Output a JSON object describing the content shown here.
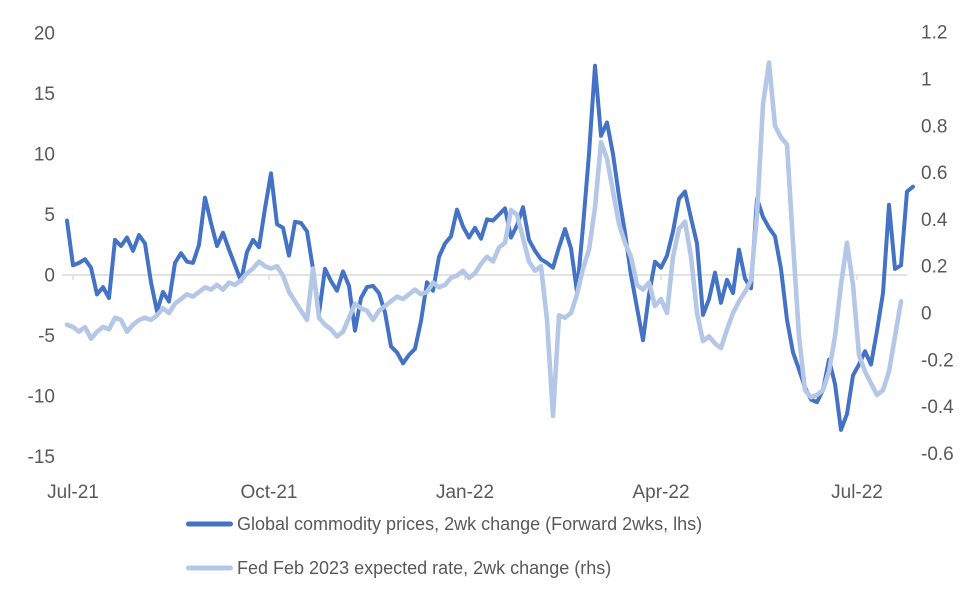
{
  "chart_data": {
    "type": "line",
    "title": "",
    "x_axis": {
      "tick_labels": [
        "Jul-21",
        "Oct-21",
        "Jan-22",
        "Apr-22",
        "Jul-22"
      ]
    },
    "left_axis": {
      "tick_labels": [
        "20",
        "15",
        "10",
        "5",
        "0",
        "-5",
        "-10",
        "-15"
      ],
      "tick_values": [
        20,
        15,
        10,
        5,
        0,
        -5,
        -10,
        -15
      ],
      "min": -15,
      "max": 20
    },
    "right_axis": {
      "tick_labels": [
        "1.2",
        "1",
        "0.8",
        "0.6",
        "0.4",
        "0.2",
        "0",
        "-0.2",
        "-0.4",
        "-0.6"
      ],
      "tick_values": [
        1.2,
        1.0,
        0.8,
        0.6,
        0.4,
        0.2,
        0,
        -0.2,
        -0.4,
        -0.6
      ],
      "min": -0.6,
      "max": 1.2
    },
    "grid": "horizontal-zero-line-only",
    "legend_position": "bottom-left",
    "colors": {
      "series_1": "#4472C4",
      "series_2": "#B4C7E7",
      "axis_text": "#595959",
      "gridline": "#D9D9D9"
    },
    "series": [
      {
        "name": "Global commodity prices, 2wk change (Forward 2wks, lhs)",
        "axis": "left",
        "color": "#4472C4",
        "values": [
          4.5,
          0.8,
          1.0,
          1.3,
          0.6,
          -1.6,
          -1.0,
          -1.9,
          2.9,
          2.4,
          3.1,
          2.0,
          3.3,
          2.6,
          -0.6,
          -3.0,
          -1.4,
          -2.2,
          1.0,
          1.8,
          1.1,
          1.0,
          2.5,
          6.4,
          4.3,
          2.4,
          3.5,
          2.1,
          0.8,
          -0.5,
          1.9,
          2.9,
          2.3,
          5.5,
          8.4,
          4.2,
          3.9,
          1.6,
          4.4,
          4.3,
          3.6,
          0.5,
          -3.2,
          0.5,
          -0.5,
          -1.3,
          0.3,
          -0.9,
          -4.6,
          -1.9,
          -1.0,
          -0.9,
          -1.5,
          -3.1,
          -5.9,
          -6.4,
          -7.3,
          -6.6,
          -6.1,
          -3.8,
          -0.6,
          -1.3,
          1.5,
          2.6,
          3.2,
          5.4,
          4.0,
          3.1,
          3.9,
          3.0,
          4.6,
          4.5,
          5.0,
          5.5,
          3.1,
          4.1,
          5.6,
          2.9,
          2.0,
          1.3,
          1.0,
          0.6,
          2.3,
          3.8,
          2.2,
          -1.4,
          4.0,
          10.0,
          17.3,
          11.5,
          12.6,
          10.0,
          6.5,
          3.5,
          0.0,
          -2.7,
          -5.4,
          -1.6,
          1.1,
          0.6,
          1.6,
          3.6,
          6.3,
          6.9,
          4.7,
          2.6,
          -3.3,
          -2.0,
          0.2,
          -2.3,
          -0.4,
          -1.5,
          2.1,
          -0.3,
          -1.1,
          6.3,
          4.8,
          3.9,
          3.2,
          0.5,
          -3.7,
          -6.4,
          -7.8,
          -9.3,
          -10.3,
          -10.5,
          -9.5,
          -7.0,
          -9.0,
          -12.8,
          -11.5,
          -8.3,
          -7.4,
          -6.3,
          -7.4,
          -4.6,
          -1.5,
          5.8,
          0.5,
          0.8,
          6.9,
          7.3
        ]
      },
      {
        "name": "Fed Feb 2023 expected rate, 2wk change (rhs)",
        "axis": "right",
        "color": "#B4C7E7",
        "values": [
          -0.05,
          -0.06,
          -0.08,
          -0.06,
          -0.11,
          -0.08,
          -0.06,
          -0.07,
          -0.02,
          -0.03,
          -0.08,
          -0.05,
          -0.03,
          -0.02,
          -0.03,
          -0.01,
          0.02,
          0.0,
          0.04,
          0.06,
          0.08,
          0.07,
          0.09,
          0.11,
          0.1,
          0.12,
          0.1,
          0.13,
          0.12,
          0.14,
          0.17,
          0.19,
          0.22,
          0.2,
          0.19,
          0.2,
          0.16,
          0.09,
          0.05,
          0.01,
          -0.03,
          0.19,
          -0.02,
          -0.05,
          -0.07,
          -0.1,
          -0.08,
          -0.02,
          0.04,
          0.02,
          0.01,
          -0.03,
          0.01,
          0.03,
          0.05,
          0.07,
          0.06,
          0.08,
          0.1,
          0.08,
          0.09,
          0.13,
          0.11,
          0.12,
          0.15,
          0.16,
          0.18,
          0.15,
          0.17,
          0.21,
          0.24,
          0.22,
          0.28,
          0.3,
          0.44,
          0.42,
          0.32,
          0.22,
          0.18,
          0.2,
          -0.03,
          -0.44,
          -0.01,
          -0.02,
          0.0,
          0.08,
          0.19,
          0.27,
          0.45,
          0.73,
          0.66,
          0.52,
          0.38,
          0.3,
          0.24,
          0.12,
          0.1,
          0.13,
          0.03,
          0.06,
          0.0,
          0.24,
          0.36,
          0.39,
          0.24,
          0.0,
          -0.12,
          -0.1,
          -0.13,
          -0.15,
          -0.07,
          0.0,
          0.05,
          0.09,
          0.14,
          0.42,
          0.89,
          1.07,
          0.8,
          0.75,
          0.72,
          0.3,
          -0.1,
          -0.33,
          -0.36,
          -0.35,
          -0.33,
          -0.25,
          -0.1,
          0.12,
          0.3,
          0.12,
          -0.18,
          -0.25,
          -0.3,
          -0.35,
          -0.33,
          -0.25,
          -0.1,
          0.05,
          null,
          null
        ]
      }
    ]
  }
}
